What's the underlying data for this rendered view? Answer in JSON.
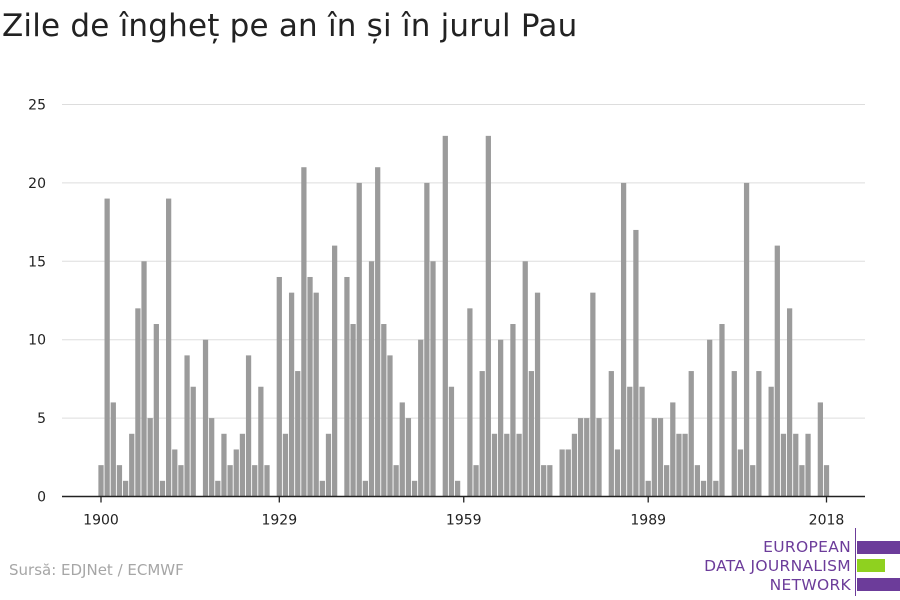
{
  "title": "Zile de îngheț pe an în și în jurul Pau",
  "source": "Sursă: EDJNet / ECMWF",
  "logo": {
    "lines": [
      "EUROPEAN",
      "DATA JOURNALISM",
      "NETWORK"
    ],
    "colors": {
      "purple": "#6c3c9a",
      "green": "#8fd11f"
    }
  },
  "colors": {
    "bar": "#9b9b9b",
    "grid": "#dddddd",
    "axis": "#222222",
    "text": "#222222"
  },
  "chart_data": {
    "type": "bar",
    "title": "Zile de îngheț pe an în și în jurul Pau",
    "xlabel": "",
    "ylabel": "",
    "ylim": [
      0,
      25
    ],
    "yticks": [
      0,
      5,
      10,
      15,
      20,
      25
    ],
    "xticks": [
      1900,
      1929,
      1959,
      1989,
      2018
    ],
    "grid": true,
    "legend": "none",
    "x_start": 1900,
    "x_end": 2018,
    "categories": [
      1900,
      1901,
      1902,
      1903,
      1904,
      1905,
      1906,
      1907,
      1908,
      1909,
      1910,
      1911,
      1912,
      1913,
      1914,
      1915,
      1916,
      1917,
      1918,
      1919,
      1920,
      1921,
      1922,
      1923,
      1924,
      1925,
      1926,
      1927,
      1928,
      1929,
      1930,
      1931,
      1932,
      1933,
      1934,
      1935,
      1936,
      1937,
      1938,
      1939,
      1940,
      1941,
      1942,
      1943,
      1944,
      1945,
      1946,
      1947,
      1948,
      1949,
      1950,
      1951,
      1952,
      1953,
      1954,
      1955,
      1956,
      1957,
      1958,
      1959,
      1960,
      1961,
      1962,
      1963,
      1964,
      1965,
      1966,
      1967,
      1968,
      1969,
      1970,
      1971,
      1972,
      1973,
      1974,
      1975,
      1976,
      1977,
      1978,
      1979,
      1980,
      1981,
      1982,
      1983,
      1984,
      1985,
      1986,
      1987,
      1988,
      1989,
      1990,
      1991,
      1992,
      1993,
      1994,
      1995,
      1996,
      1997,
      1998,
      1999,
      2000,
      2001,
      2002,
      2003,
      2004,
      2005,
      2006,
      2007,
      2008,
      2009,
      2010,
      2011,
      2012,
      2013,
      2014,
      2015,
      2016,
      2017,
      2018
    ],
    "values": [
      2,
      19,
      6,
      2,
      1,
      4,
      12,
      15,
      5,
      11,
      1,
      19,
      3,
      2,
      9,
      7,
      0,
      10,
      5,
      1,
      4,
      2,
      3,
      4,
      9,
      2,
      7,
      2,
      0,
      14,
      4,
      13,
      8,
      21,
      14,
      13,
      1,
      4,
      16,
      0,
      14,
      11,
      20,
      1,
      15,
      21,
      11,
      9,
      2,
      6,
      5,
      1,
      10,
      20,
      15,
      0,
      23,
      7,
      1,
      0,
      12,
      2,
      8,
      23,
      4,
      10,
      4,
      11,
      4,
      15,
      8,
      13,
      2,
      2,
      0,
      3,
      3,
      4,
      5,
      5,
      13,
      5,
      0,
      8,
      3,
      20,
      7,
      17,
      7,
      1,
      5,
      5,
      2,
      6,
      4,
      4,
      8,
      2,
      1,
      10,
      1,
      11,
      0,
      8,
      3,
      20,
      2,
      8,
      0,
      7,
      16,
      4,
      12,
      4,
      2,
      4,
      0,
      6,
      2
    ]
  }
}
